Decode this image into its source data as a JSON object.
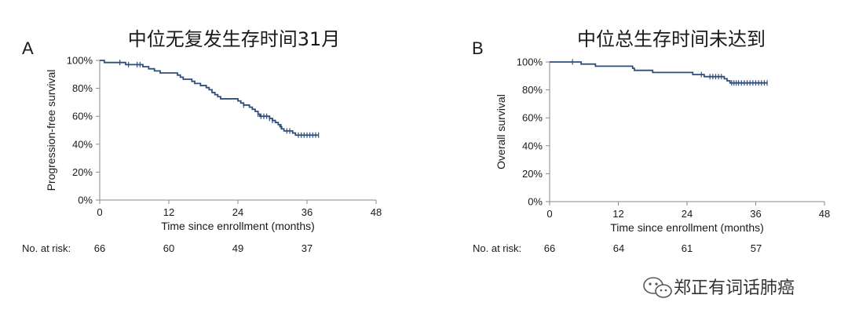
{
  "chart_data": [
    {
      "type": "line",
      "panel": "A",
      "title": "中位无复发生存时间31月",
      "xlabel": "Time since enrollment (months)",
      "ylabel": "Progression-free survival",
      "xlim": [
        0,
        48
      ],
      "ylim": [
        0,
        100
      ],
      "x_ticks": [
        "0",
        "12",
        "24",
        "36",
        "48"
      ],
      "y_ticks": [
        "0%",
        "20%",
        "40%",
        "60%",
        "80%",
        "100%"
      ],
      "grid": false,
      "risk_label": "No. at risk:",
      "risk_counts": [
        "66",
        "60",
        "49",
        "37"
      ],
      "series": [
        {
          "color": "#2e4f7a",
          "steps": [
            [
              0,
              100
            ],
            [
              0.8,
              98.5
            ],
            [
              4.5,
              97
            ],
            [
              7.5,
              95.5
            ],
            [
              8.5,
              94
            ],
            [
              9.5,
              92.5
            ],
            [
              10.5,
              91
            ],
            [
              13.5,
              89.5
            ],
            [
              14,
              88
            ],
            [
              14.5,
              86.5
            ],
            [
              16,
              85
            ],
            [
              16.5,
              83.5
            ],
            [
              17.5,
              82
            ],
            [
              18.5,
              80.5
            ],
            [
              19,
              79
            ],
            [
              19.5,
              77
            ],
            [
              20,
              75.5
            ],
            [
              20.5,
              74
            ],
            [
              21,
              72.5
            ],
            [
              24,
              71
            ],
            [
              24.5,
              69.5
            ],
            [
              25,
              68
            ],
            [
              26,
              66.5
            ],
            [
              26.5,
              65
            ],
            [
              27,
              63.5
            ],
            [
              27.5,
              61.5
            ],
            [
              27.8,
              60
            ],
            [
              29.5,
              58.5
            ],
            [
              30,
              57
            ],
            [
              30.5,
              55.5
            ],
            [
              31,
              54
            ],
            [
              31.3,
              52.5
            ],
            [
              31.6,
              51
            ],
            [
              32,
              49.5
            ],
            [
              33.5,
              48
            ],
            [
              34,
              46.5
            ],
            [
              38,
              46.5
            ]
          ],
          "censor_x": [
            3.5,
            5,
            6.5,
            7,
            25,
            27.5,
            28,
            28.5,
            29,
            29.5,
            30,
            31.5,
            32.5,
            33,
            34.5,
            35,
            35.5,
            36,
            36.5,
            37,
            37.5,
            38
          ]
        }
      ]
    },
    {
      "type": "line",
      "panel": "B",
      "title": "中位总生存时间未达到",
      "xlabel": "Time since enrollment (months)",
      "ylabel": "Overall survival",
      "xlim": [
        0,
        48
      ],
      "ylim": [
        0,
        100
      ],
      "x_ticks": [
        "0",
        "12",
        "24",
        "36",
        "48"
      ],
      "y_ticks": [
        "0%",
        "20%",
        "40%",
        "60%",
        "80%",
        "100%"
      ],
      "grid": false,
      "risk_label": "No. at risk:",
      "risk_counts": [
        "66",
        "64",
        "61",
        "57"
      ],
      "series": [
        {
          "color": "#2e4f7a",
          "steps": [
            [
              0,
              100
            ],
            [
              5.5,
              98.5
            ],
            [
              8,
              97
            ],
            [
              14.5,
              95.5
            ],
            [
              14.8,
              94
            ],
            [
              18,
              92.5
            ],
            [
              25,
              91
            ],
            [
              27,
              89.5
            ],
            [
              30.5,
              88
            ],
            [
              31,
              86.5
            ],
            [
              31.5,
              85
            ],
            [
              38,
              85
            ]
          ],
          "censor_x": [
            4,
            26.5,
            28,
            28.5,
            29,
            29.5,
            30,
            31.8,
            32.2,
            32.6,
            33,
            33.5,
            34,
            34.5,
            35,
            35.5,
            36,
            36.5,
            37,
            37.5,
            38
          ]
        }
      ]
    }
  ],
  "watermark": {
    "icon": "wechat-icon",
    "text": "郑正有词话肺癌"
  }
}
